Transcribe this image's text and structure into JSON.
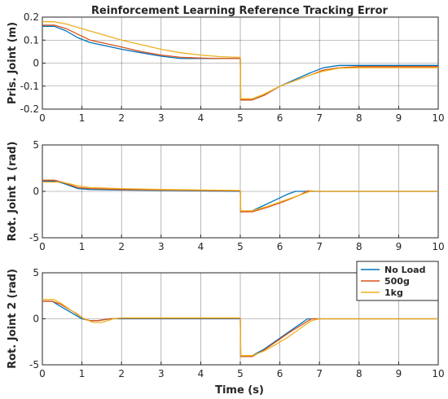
{
  "title": "Reinforcement Learning Reference Tracking Error",
  "shared_xlabel": "Time (s)",
  "legend": [
    {
      "name": "No Load",
      "color": "#0072BD"
    },
    {
      "name": "500g",
      "color": "#D95319"
    },
    {
      "name": "1kg",
      "color": "#EDB120"
    }
  ],
  "chart_data": [
    {
      "type": "line",
      "ylabel": "Pris. Joint (m)",
      "xlim": [
        0,
        10
      ],
      "ylim": [
        -0.2,
        0.2
      ],
      "xticks": [
        0,
        1,
        2,
        3,
        4,
        5,
        6,
        7,
        8,
        9,
        10
      ],
      "yticks": [
        -0.2,
        -0.1,
        0,
        0.1,
        0.2
      ],
      "ytick_labels": [
        "-0.2",
        "-0.1",
        "0",
        "0.1",
        "0.2"
      ],
      "grid": true,
      "series": [
        {
          "name": "No Load",
          "color": "#0072BD",
          "x": [
            0,
            0.3,
            0.6,
            0.9,
            1.2,
            1.6,
            2.0,
            2.5,
            3.0,
            3.5,
            4.0,
            4.5,
            5.0,
            5.01,
            5.3,
            5.6,
            6.0,
            6.4,
            6.8,
            7.1,
            7.5,
            8.0,
            9.0,
            10.0
          ],
          "y": [
            0.16,
            0.16,
            0.14,
            0.11,
            0.09,
            0.075,
            0.06,
            0.045,
            0.03,
            0.02,
            0.02,
            0.02,
            0.02,
            -0.16,
            -0.16,
            -0.14,
            -0.1,
            -0.07,
            -0.04,
            -0.02,
            -0.01,
            -0.01,
            -0.01,
            -0.01
          ]
        },
        {
          "name": "500g",
          "color": "#D95319",
          "x": [
            0,
            0.3,
            0.6,
            0.9,
            1.2,
            1.6,
            2.0,
            2.5,
            3.0,
            3.5,
            4.0,
            4.5,
            5.0,
            5.01,
            5.3,
            5.6,
            6.0,
            6.4,
            6.8,
            7.1,
            7.5,
            8.0,
            9.0,
            10.0
          ],
          "y": [
            0.165,
            0.165,
            0.15,
            0.125,
            0.1,
            0.085,
            0.07,
            0.05,
            0.035,
            0.025,
            0.022,
            0.02,
            0.02,
            -0.16,
            -0.16,
            -0.14,
            -0.1,
            -0.075,
            -0.05,
            -0.03,
            -0.02,
            -0.015,
            -0.015,
            -0.015
          ]
        },
        {
          "name": "1kg",
          "color": "#EDB120",
          "x": [
            0,
            0.3,
            0.6,
            0.9,
            1.2,
            1.6,
            2.0,
            2.5,
            3.0,
            3.5,
            4.0,
            4.5,
            5.0,
            5.01,
            5.3,
            5.6,
            6.0,
            6.4,
            6.8,
            7.1,
            7.5,
            8.0,
            9.0,
            10.0
          ],
          "y": [
            0.18,
            0.18,
            0.17,
            0.155,
            0.14,
            0.12,
            0.1,
            0.08,
            0.06,
            0.045,
            0.035,
            0.028,
            0.025,
            -0.155,
            -0.155,
            -0.135,
            -0.1,
            -0.075,
            -0.05,
            -0.035,
            -0.022,
            -0.02,
            -0.02,
            -0.02
          ]
        }
      ]
    },
    {
      "type": "line",
      "ylabel": "Rot. Joint 1 (rad)",
      "xlim": [
        0,
        10
      ],
      "ylim": [
        -5,
        5
      ],
      "xticks": [
        0,
        1,
        2,
        3,
        4,
        5,
        6,
        7,
        8,
        9,
        10
      ],
      "yticks": [
        -5,
        0,
        5
      ],
      "ytick_labels": [
        "-5",
        "0",
        "5"
      ],
      "grid": true,
      "series": [
        {
          "name": "No Load",
          "color": "#0072BD",
          "x": [
            0,
            0.3,
            0.5,
            0.7,
            0.9,
            1.2,
            2.0,
            3.0,
            4.0,
            5.0,
            5.01,
            5.3,
            5.6,
            5.9,
            6.2,
            6.4,
            7.0,
            8.0,
            9.0,
            10.0
          ],
          "y": [
            1.1,
            1.1,
            0.9,
            0.6,
            0.3,
            0.2,
            0.15,
            0.1,
            0.05,
            0.0,
            -2.2,
            -2.1,
            -1.5,
            -0.9,
            -0.3,
            0.0,
            0.0,
            0.0,
            0.0,
            0.0
          ]
        },
        {
          "name": "500g",
          "color": "#D95319",
          "x": [
            0,
            0.3,
            0.5,
            0.7,
            0.9,
            1.2,
            2.0,
            3.0,
            4.0,
            5.0,
            5.01,
            5.3,
            5.7,
            6.1,
            6.5,
            6.7,
            7.0,
            8.0,
            9.0,
            10.0
          ],
          "y": [
            1.2,
            1.2,
            1.0,
            0.7,
            0.4,
            0.3,
            0.2,
            0.15,
            0.1,
            0.05,
            -2.2,
            -2.2,
            -1.7,
            -1.1,
            -0.4,
            0.05,
            0.0,
            0.0,
            0.0,
            0.0
          ]
        },
        {
          "name": "1kg",
          "color": "#EDB120",
          "x": [
            0,
            0.3,
            0.5,
            0.7,
            0.9,
            1.2,
            2.0,
            3.0,
            4.0,
            5.0,
            5.01,
            5.3,
            5.7,
            6.1,
            6.5,
            6.8,
            7.0,
            8.0,
            9.0,
            10.0
          ],
          "y": [
            1.0,
            1.0,
            1.0,
            0.8,
            0.6,
            0.4,
            0.3,
            0.2,
            0.15,
            0.1,
            -2.1,
            -2.1,
            -1.6,
            -1.0,
            -0.4,
            0.05,
            0.0,
            0.0,
            0.0,
            0.0
          ]
        }
      ]
    },
    {
      "type": "line",
      "ylabel": "Rot. Joint 2 (rad)",
      "xlabel": "Time (s)",
      "xlim": [
        0,
        10
      ],
      "ylim": [
        -5,
        5
      ],
      "xticks": [
        0,
        1,
        2,
        3,
        4,
        5,
        6,
        7,
        8,
        9,
        10
      ],
      "yticks": [
        -5,
        0,
        5
      ],
      "ytick_labels": [
        "-5",
        "0",
        "5"
      ],
      "grid": true,
      "legend_position": "top-right",
      "series": [
        {
          "name": "No Load",
          "color": "#0072BD",
          "x": [
            0,
            0.25,
            0.4,
            0.6,
            0.8,
            1.0,
            1.2,
            1.4,
            1.7,
            2.0,
            3.0,
            4.0,
            5.0,
            5.01,
            5.3,
            5.6,
            5.9,
            6.2,
            6.5,
            6.7,
            7.0,
            8.0,
            9.0,
            10.0
          ],
          "y": [
            1.9,
            1.9,
            1.5,
            1.0,
            0.5,
            0.0,
            -0.2,
            -0.2,
            0.0,
            0.0,
            0.0,
            0.0,
            0.0,
            -4.0,
            -4.0,
            -3.3,
            -2.4,
            -1.5,
            -0.6,
            0.0,
            0.0,
            0.0,
            0.0,
            0.0
          ]
        },
        {
          "name": "500g",
          "color": "#D95319",
          "x": [
            0,
            0.25,
            0.45,
            0.65,
            0.85,
            1.05,
            1.2,
            1.4,
            1.7,
            2.0,
            3.0,
            4.0,
            5.0,
            5.01,
            5.3,
            5.6,
            5.9,
            6.2,
            6.5,
            6.8,
            7.0,
            8.0,
            9.0,
            10.0
          ],
          "y": [
            1.9,
            1.9,
            1.6,
            1.1,
            0.6,
            0.0,
            -0.2,
            -0.2,
            0.0,
            0.05,
            0.05,
            0.05,
            0.05,
            -4.1,
            -4.1,
            -3.4,
            -2.5,
            -1.6,
            -0.8,
            0.0,
            0.0,
            0.0,
            0.0,
            0.0
          ]
        },
        {
          "name": "1kg",
          "color": "#EDB120",
          "x": [
            0,
            0.3,
            0.5,
            0.7,
            0.9,
            1.1,
            1.3,
            1.5,
            1.8,
            2.0,
            3.0,
            4.0,
            5.0,
            5.01,
            5.3,
            5.6,
            5.9,
            6.2,
            6.5,
            6.8,
            7.0,
            8.0,
            9.0,
            10.0
          ],
          "y": [
            2.1,
            2.1,
            1.6,
            1.0,
            0.4,
            -0.1,
            -0.4,
            -0.4,
            0.0,
            0.1,
            0.1,
            0.1,
            0.1,
            -4.0,
            -4.0,
            -3.5,
            -2.8,
            -2.0,
            -1.1,
            -0.2,
            0.0,
            0.0,
            0.0,
            0.0
          ]
        }
      ]
    }
  ]
}
